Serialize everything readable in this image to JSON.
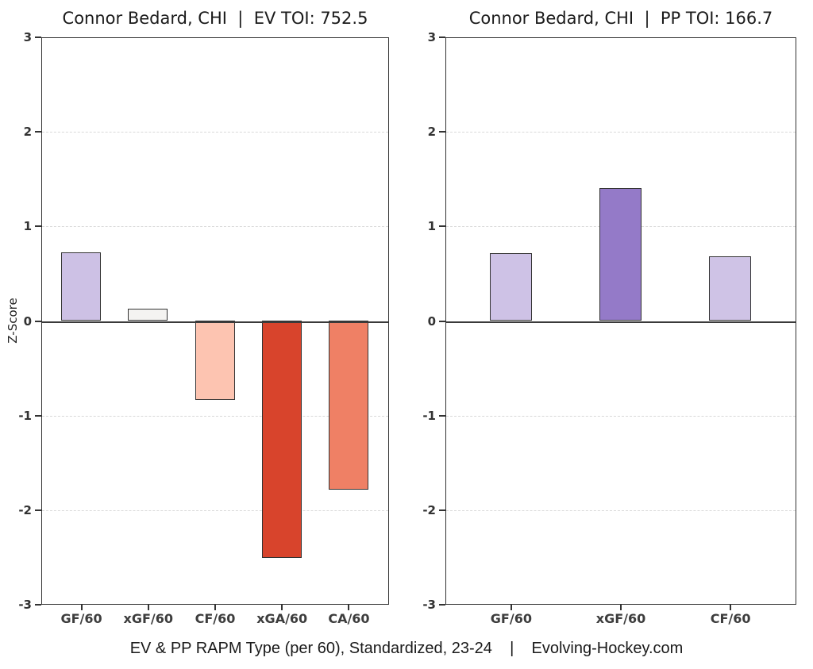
{
  "caption": "EV & PP RAPM Type (per 60), Standardized, 23-24    |    Evolving-Hockey.com",
  "y_axis": {
    "label": "Z-Score",
    "ticks": [
      3,
      2,
      1,
      0,
      -1,
      -2,
      -3
    ],
    "ylim": [
      -3,
      3
    ]
  },
  "chart_data": [
    {
      "type": "bar",
      "title": "Connor Bedard, CHI  |  EV TOI: 752.5",
      "categories": [
        "GF/60",
        "xGF/60",
        "CF/60",
        "xGA/60",
        "CA/60"
      ],
      "values": [
        0.72,
        0.13,
        -0.84,
        -2.51,
        -1.79
      ],
      "bar_colors": [
        "#cdc1e5",
        "#f4f3f1",
        "#fdc4b1",
        "#d8442c",
        "#ef8065"
      ],
      "xlabel": "",
      "ylabel": "Z-Score",
      "ylim": [
        -3,
        3
      ],
      "y_ticks": [
        3,
        2,
        1,
        0,
        -1,
        -2,
        -3
      ],
      "grid": true,
      "legend": "none"
    },
    {
      "type": "bar",
      "title": "Connor Bedard, CHI  |  PP TOI: 166.7",
      "categories": [
        "GF/60",
        "xGF/60",
        "CF/60"
      ],
      "values": [
        0.71,
        1.4,
        0.68
      ],
      "bar_colors": [
        "#cec2e6",
        "#947ac8",
        "#cfc3e6"
      ],
      "xlabel": "",
      "ylabel": "",
      "ylim": [
        -3,
        3
      ],
      "y_ticks": [
        3,
        2,
        1,
        0,
        -1,
        -2,
        -3
      ],
      "grid": true,
      "legend": "none"
    }
  ],
  "colors": {
    "axis": "#333333",
    "zero_line": "#3a3a3a",
    "gridline": "#d9d9d9",
    "title_text": "#1a1a1a",
    "tick_text": "#333333"
  }
}
